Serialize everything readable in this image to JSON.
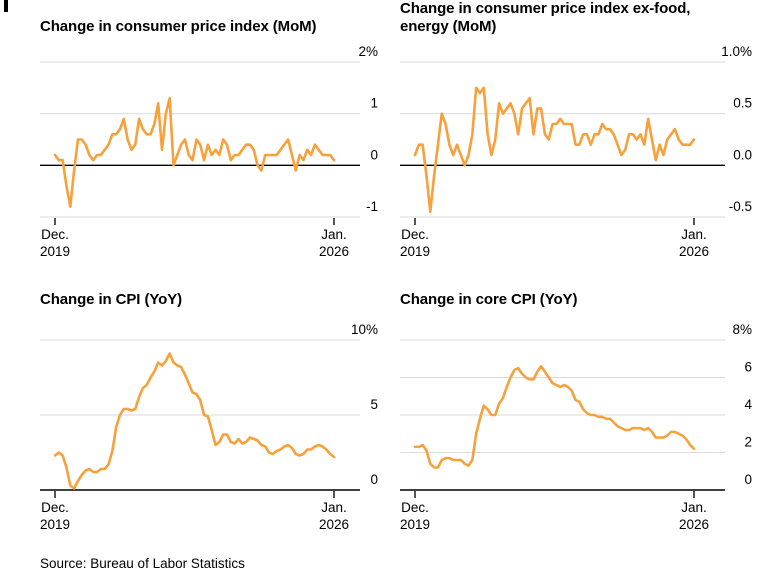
{
  "page": {
    "source": "Source: Bureau of Labor Statistics"
  },
  "style": {
    "line_color": "#F7A13C",
    "grid_color": "#D9D9D9",
    "zero_line_color": "#000000",
    "tick_color": "#555555",
    "text_color": "#000000"
  },
  "chart_data": [
    {
      "type": "line",
      "title": "Change in consumer price index (MoM)",
      "x": "monthly, Dec. 2019 to Jan. 2026",
      "x_start": {
        "line1": "Dec.",
        "line2": "2019"
      },
      "x_end": {
        "line1": "Jan.",
        "line2": "2026"
      },
      "ymin": -1,
      "ymax": 2,
      "grid": true,
      "legend": "none",
      "y_ticks": [
        {
          "value": 2,
          "label": "2%"
        },
        {
          "value": 1,
          "label": "1"
        },
        {
          "value": 0,
          "label": "0"
        },
        {
          "value": -1,
          "label": "-1"
        }
      ],
      "values": [
        0.2,
        0.1,
        0.1,
        -0.4,
        -0.8,
        -0.1,
        0.5,
        0.5,
        0.4,
        0.2,
        0.1,
        0.2,
        0.2,
        0.3,
        0.4,
        0.6,
        0.6,
        0.7,
        0.9,
        0.5,
        0.3,
        0.4,
        0.9,
        0.7,
        0.6,
        0.6,
        0.8,
        1.2,
        0.3,
        1.0,
        1.3,
        0.0,
        0.2,
        0.4,
        0.5,
        0.2,
        0.1,
        0.5,
        0.4,
        0.1,
        0.4,
        0.2,
        0.3,
        0.2,
        0.5,
        0.4,
        0.1,
        0.2,
        0.2,
        0.3,
        0.4,
        0.4,
        0.3,
        0.0,
        -0.1,
        0.2,
        0.2,
        0.2,
        0.2,
        0.3,
        0.4,
        0.5,
        0.2,
        -0.1,
        0.2,
        0.1,
        0.3,
        0.2,
        0.4,
        0.3,
        0.2,
        0.2,
        0.2,
        0.1
      ]
    },
    {
      "type": "line",
      "title": "Change in consumer price index ex-food, energy (MoM)",
      "x": "monthly, Dec. 2019 to Jan. 2026",
      "x_start": {
        "line1": "Dec.",
        "line2": "2019"
      },
      "x_end": {
        "line1": "Jan.",
        "line2": "2026"
      },
      "ymin": -0.5,
      "ymax": 1.0,
      "grid": true,
      "legend": "none",
      "y_ticks": [
        {
          "value": 1.0,
          "label": "1.0%"
        },
        {
          "value": 0.5,
          "label": "0.5"
        },
        {
          "value": 0.0,
          "label": "0.0"
        },
        {
          "value": -0.5,
          "label": "-0.5"
        }
      ],
      "values": [
        0.1,
        0.2,
        0.2,
        -0.1,
        -0.45,
        -0.1,
        0.2,
        0.5,
        0.4,
        0.2,
        0.1,
        0.2,
        0.1,
        0.0,
        0.1,
        0.3,
        0.75,
        0.7,
        0.75,
        0.3,
        0.1,
        0.25,
        0.6,
        0.5,
        0.55,
        0.6,
        0.5,
        0.3,
        0.55,
        0.6,
        0.65,
        0.3,
        0.55,
        0.55,
        0.3,
        0.25,
        0.4,
        0.4,
        0.45,
        0.4,
        0.4,
        0.4,
        0.2,
        0.2,
        0.3,
        0.3,
        0.2,
        0.3,
        0.3,
        0.4,
        0.35,
        0.35,
        0.3,
        0.2,
        0.1,
        0.15,
        0.3,
        0.3,
        0.25,
        0.3,
        0.2,
        0.45,
        0.25,
        0.05,
        0.2,
        0.1,
        0.25,
        0.3,
        0.35,
        0.25,
        0.2,
        0.2,
        0.2,
        0.25
      ]
    },
    {
      "type": "line",
      "title": "Change in CPI (YoY)",
      "x": "monthly, Dec. 2019 to Jan. 2026",
      "x_start": {
        "line1": "Dec.",
        "line2": "2019"
      },
      "x_end": {
        "line1": "Jan.",
        "line2": "2026"
      },
      "ymin": 0,
      "ymax": 10,
      "grid": true,
      "legend": "none",
      "y_ticks": [
        {
          "value": 10,
          "label": "10%"
        },
        {
          "value": 5,
          "label": "5"
        },
        {
          "value": 0,
          "label": "0"
        }
      ],
      "values": [
        2.3,
        2.5,
        2.3,
        1.5,
        0.3,
        0.1,
        0.6,
        1.0,
        1.3,
        1.4,
        1.2,
        1.2,
        1.4,
        1.4,
        1.7,
        2.6,
        4.2,
        5.0,
        5.4,
        5.4,
        5.3,
        5.4,
        6.2,
        6.8,
        7.0,
        7.5,
        7.9,
        8.5,
        8.3,
        8.6,
        9.1,
        8.5,
        8.3,
        8.2,
        7.7,
        7.1,
        6.5,
        6.4,
        6.0,
        5.0,
        4.9,
        4.0,
        3.0,
        3.2,
        3.7,
        3.7,
        3.2,
        3.1,
        3.4,
        3.1,
        3.2,
        3.5,
        3.4,
        3.3,
        3.0,
        2.9,
        2.5,
        2.4,
        2.6,
        2.7,
        2.9,
        3.0,
        2.8,
        2.4,
        2.3,
        2.4,
        2.7,
        2.7,
        2.9,
        3.0,
        2.9,
        2.7,
        2.4,
        2.2
      ]
    },
    {
      "type": "line",
      "title": "Change in core CPI (YoY)",
      "x": "monthly, Dec. 2019 to Jan. 2026",
      "x_start": {
        "line1": "Dec.",
        "line2": "2019"
      },
      "x_end": {
        "line1": "Jan.",
        "line2": "2026"
      },
      "ymin": 0,
      "ymax": 8,
      "grid": true,
      "legend": "none",
      "y_ticks": [
        {
          "value": 8,
          "label": "8%"
        },
        {
          "value": 6,
          "label": "6"
        },
        {
          "value": 4,
          "label": "4"
        },
        {
          "value": 2,
          "label": "2"
        },
        {
          "value": 0,
          "label": "0"
        }
      ],
      "values": [
        2.3,
        2.3,
        2.4,
        2.1,
        1.4,
        1.2,
        1.2,
        1.6,
        1.7,
        1.7,
        1.6,
        1.6,
        1.6,
        1.4,
        1.3,
        1.6,
        3.0,
        3.8,
        4.5,
        4.3,
        4.0,
        4.0,
        4.6,
        4.9,
        5.5,
        6.0,
        6.4,
        6.5,
        6.2,
        6.0,
        5.9,
        5.9,
        6.3,
        6.6,
        6.3,
        6.0,
        5.7,
        5.6,
        5.5,
        5.6,
        5.5,
        5.3,
        4.8,
        4.7,
        4.3,
        4.1,
        4.0,
        4.0,
        3.9,
        3.9,
        3.8,
        3.8,
        3.6,
        3.4,
        3.3,
        3.2,
        3.2,
        3.3,
        3.3,
        3.3,
        3.2,
        3.3,
        3.1,
        2.8,
        2.8,
        2.8,
        2.9,
        3.1,
        3.1,
        3.0,
        2.9,
        2.7,
        2.4,
        2.2
      ]
    }
  ]
}
